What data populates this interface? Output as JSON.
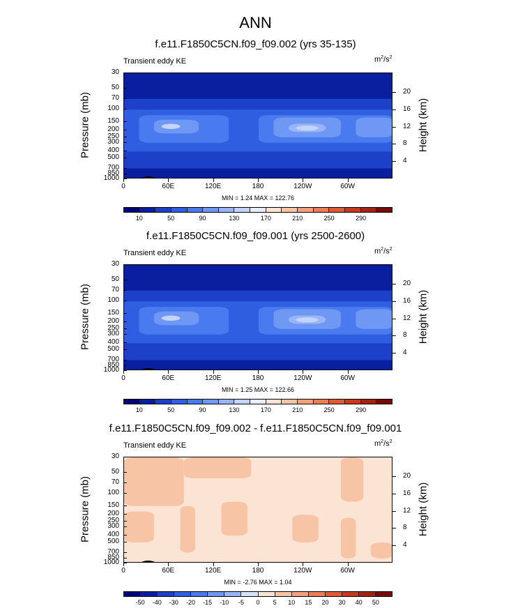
{
  "figure": {
    "title": "ANN"
  },
  "chart_data": [
    {
      "type": "heatmap",
      "title": "f.e11.F1850C5CN.f09_f09.002 (yrs 35-135)",
      "label": "Transient eddy KE",
      "units": "m²/s²",
      "units_base": "m",
      "units_sup1": "2",
      "units_mid": "/s",
      "units_sup2": "2",
      "ylabel": "Pressure (mb)",
      "ylabel_right": "Height (km)",
      "y_ticks": [
        "30",
        "50",
        "70",
        "100",
        "150",
        "200",
        "250",
        "300",
        "400",
        "500",
        "700",
        "850",
        "1000"
      ],
      "y_ticks_values": [
        30,
        50,
        70,
        100,
        150,
        200,
        250,
        300,
        400,
        500,
        700,
        850,
        1000
      ],
      "right_ticks": [
        "20",
        "16",
        "12",
        "8",
        "4"
      ],
      "right_ticks_values": [
        20,
        16,
        12,
        8,
        4
      ],
      "x_ticks": [
        "0",
        "60E",
        "120E",
        "180",
        "120W",
        "60W"
      ],
      "x_ticks_values": [
        0,
        60,
        120,
        180,
        240,
        300
      ],
      "xlim": [
        0,
        360
      ],
      "minmax": "MIN =   1.24  MAX = 122.76",
      "min": 1.24,
      "max": 122.76,
      "colorbar_levels": [
        "10",
        "50",
        "90",
        "130",
        "170",
        "210",
        "250",
        "290"
      ],
      "colorbar_colors": [
        "#00007a",
        "#0a1fa0",
        "#1c40c8",
        "#2f5fe0",
        "#4a7af0",
        "#6f98f5",
        "#98b6f7",
        "#c3d4f8",
        "#e9eef8",
        "#fbe4d3",
        "#f8c4a6",
        "#f3a17c",
        "#ec7d55",
        "#e05a35",
        "#c73a20",
        "#a52312",
        "#7a0a05"
      ],
      "field": [
        {
          "p_top": 30,
          "p_bot": 1000,
          "lon0": 0,
          "lon1": 360,
          "level": 1
        },
        {
          "p_top": 70,
          "p_bot": 700,
          "lon0": 0,
          "lon1": 360,
          "level": 2
        },
        {
          "p_top": 100,
          "p_bot": 400,
          "lon0": 0,
          "lon1": 360,
          "level": 3
        },
        {
          "p_top": 120,
          "p_bot": 300,
          "lon0": 20,
          "lon1": 140,
          "level": 4
        },
        {
          "p_top": 120,
          "p_bot": 300,
          "lon0": 180,
          "lon1": 360,
          "level": 4
        },
        {
          "p_top": 140,
          "p_bot": 220,
          "lon0": 40,
          "lon1": 100,
          "level": 5
        },
        {
          "p_top": 130,
          "p_bot": 250,
          "lon0": 200,
          "lon1": 290,
          "level": 5
        },
        {
          "p_top": 130,
          "p_bot": 250,
          "lon0": 310,
          "lon1": 360,
          "level": 5
        },
        {
          "p_top": 160,
          "p_bot": 210,
          "lon0": 220,
          "lon1": 270,
          "level": 6
        },
        {
          "p_top": 170,
          "p_bot": 200,
          "lon0": 230,
          "lon1": 260,
          "level": 7
        },
        {
          "p_top": 160,
          "p_bot": 190,
          "lon0": 50,
          "lon1": 75,
          "level": 7
        }
      ]
    },
    {
      "type": "heatmap",
      "title": "f.e11.F1850C5CN.f09_f09.001 (yrs 2500-2600)",
      "label": "Transient eddy KE",
      "units": "m²/s²",
      "units_base": "m",
      "units_sup1": "2",
      "units_mid": "/s",
      "units_sup2": "2",
      "ylabel": "Pressure (mb)",
      "ylabel_right": "Height (km)",
      "y_ticks": [
        "30",
        "50",
        "70",
        "100",
        "150",
        "200",
        "250",
        "300",
        "400",
        "500",
        "700",
        "850",
        "1000"
      ],
      "y_ticks_values": [
        30,
        50,
        70,
        100,
        150,
        200,
        250,
        300,
        400,
        500,
        700,
        850,
        1000
      ],
      "right_ticks": [
        "20",
        "16",
        "12",
        "8",
        "4"
      ],
      "right_ticks_values": [
        20,
        16,
        12,
        8,
        4
      ],
      "x_ticks": [
        "0",
        "60E",
        "120E",
        "180",
        "120W",
        "60W"
      ],
      "x_ticks_values": [
        0,
        60,
        120,
        180,
        240,
        300
      ],
      "xlim": [
        0,
        360
      ],
      "minmax": "MIN =   1.25  MAX = 122.66",
      "min": 1.25,
      "max": 122.66,
      "colorbar_levels": [
        "10",
        "50",
        "90",
        "130",
        "170",
        "210",
        "250",
        "290"
      ],
      "colorbar_colors": [
        "#00007a",
        "#0a1fa0",
        "#1c40c8",
        "#2f5fe0",
        "#4a7af0",
        "#6f98f5",
        "#98b6f7",
        "#c3d4f8",
        "#e9eef8",
        "#fbe4d3",
        "#f8c4a6",
        "#f3a17c",
        "#ec7d55",
        "#e05a35",
        "#c73a20",
        "#a52312",
        "#7a0a05"
      ],
      "field": [
        {
          "p_top": 30,
          "p_bot": 1000,
          "lon0": 0,
          "lon1": 360,
          "level": 1
        },
        {
          "p_top": 70,
          "p_bot": 700,
          "lon0": 0,
          "lon1": 360,
          "level": 2
        },
        {
          "p_top": 100,
          "p_bot": 400,
          "lon0": 0,
          "lon1": 360,
          "level": 3
        },
        {
          "p_top": 120,
          "p_bot": 300,
          "lon0": 20,
          "lon1": 140,
          "level": 4
        },
        {
          "p_top": 120,
          "p_bot": 300,
          "lon0": 180,
          "lon1": 360,
          "level": 4
        },
        {
          "p_top": 140,
          "p_bot": 220,
          "lon0": 40,
          "lon1": 100,
          "level": 5
        },
        {
          "p_top": 130,
          "p_bot": 250,
          "lon0": 200,
          "lon1": 290,
          "level": 5
        },
        {
          "p_top": 130,
          "p_bot": 250,
          "lon0": 310,
          "lon1": 360,
          "level": 5
        },
        {
          "p_top": 160,
          "p_bot": 210,
          "lon0": 220,
          "lon1": 270,
          "level": 6
        },
        {
          "p_top": 170,
          "p_bot": 200,
          "lon0": 230,
          "lon1": 260,
          "level": 7
        },
        {
          "p_top": 160,
          "p_bot": 190,
          "lon0": 50,
          "lon1": 75,
          "level": 7
        }
      ]
    },
    {
      "type": "heatmap",
      "title": "f.e11.F1850C5CN.f09_f09.002 - f.e11.F1850C5CN.f09_f09.001",
      "label": "Transient eddy KE",
      "units": "m²/s²",
      "units_base": "m",
      "units_sup1": "2",
      "units_mid": "/s",
      "units_sup2": "2",
      "ylabel": "Pressure (mb)",
      "ylabel_right": "Height (km)",
      "y_ticks": [
        "30",
        "50",
        "70",
        "100",
        "150",
        "200",
        "250",
        "300",
        "400",
        "500",
        "700",
        "850",
        "1000"
      ],
      "y_ticks_values": [
        30,
        50,
        70,
        100,
        150,
        200,
        250,
        300,
        400,
        500,
        700,
        850,
        1000
      ],
      "right_ticks": [
        "20",
        "16",
        "12",
        "8",
        "4"
      ],
      "right_ticks_values": [
        20,
        16,
        12,
        8,
        4
      ],
      "x_ticks": [
        "0",
        "60E",
        "120E",
        "180",
        "120W",
        "60W"
      ],
      "x_ticks_values": [
        0,
        60,
        120,
        180,
        240,
        300
      ],
      "xlim": [
        0,
        360
      ],
      "minmax": "MIN =  -2.76  MAX =   1.04",
      "min": -2.76,
      "max": 1.04,
      "colorbar_levels": [
        "-50",
        "-40",
        "-30",
        "-20",
        "-15",
        "-10",
        "-5",
        "0",
        "5",
        "10",
        "15",
        "20",
        "30",
        "40",
        "50"
      ],
      "colorbar_colors": [
        "#00007a",
        "#0a1fa0",
        "#1c40c8",
        "#2f5fe0",
        "#4a7af0",
        "#6f98f5",
        "#98b6f7",
        "#d5e5f8",
        "#fbe4d3",
        "#f8c4a6",
        "#f3a17c",
        "#ec7d55",
        "#e05a35",
        "#c73a20",
        "#a52312",
        "#7a0a05"
      ],
      "field": [
        {
          "p_top": 30,
          "p_bot": 1000,
          "lon0": 0,
          "lon1": 360,
          "level": 8
        },
        {
          "p_top": 30,
          "p_bot": 150,
          "lon0": 0,
          "lon1": 80,
          "level": 9
        },
        {
          "p_top": 30,
          "p_bot": 60,
          "lon0": 80,
          "lon1": 170,
          "level": 9
        },
        {
          "p_top": 30,
          "p_bot": 130,
          "lon0": 290,
          "lon1": 320,
          "level": 9
        },
        {
          "p_top": 180,
          "p_bot": 500,
          "lon0": 0,
          "lon1": 40,
          "level": 9
        },
        {
          "p_top": 150,
          "p_bot": 700,
          "lon0": 75,
          "lon1": 95,
          "level": 9
        },
        {
          "p_top": 130,
          "p_bot": 400,
          "lon0": 130,
          "lon1": 165,
          "level": 9
        },
        {
          "p_top": 200,
          "p_bot": 500,
          "lon0": 225,
          "lon1": 260,
          "level": 9
        },
        {
          "p_top": 220,
          "p_bot": 850,
          "lon0": 290,
          "lon1": 310,
          "level": 9
        },
        {
          "p_top": 500,
          "p_bot": 850,
          "lon0": 330,
          "lon1": 360,
          "level": 9
        }
      ]
    }
  ]
}
